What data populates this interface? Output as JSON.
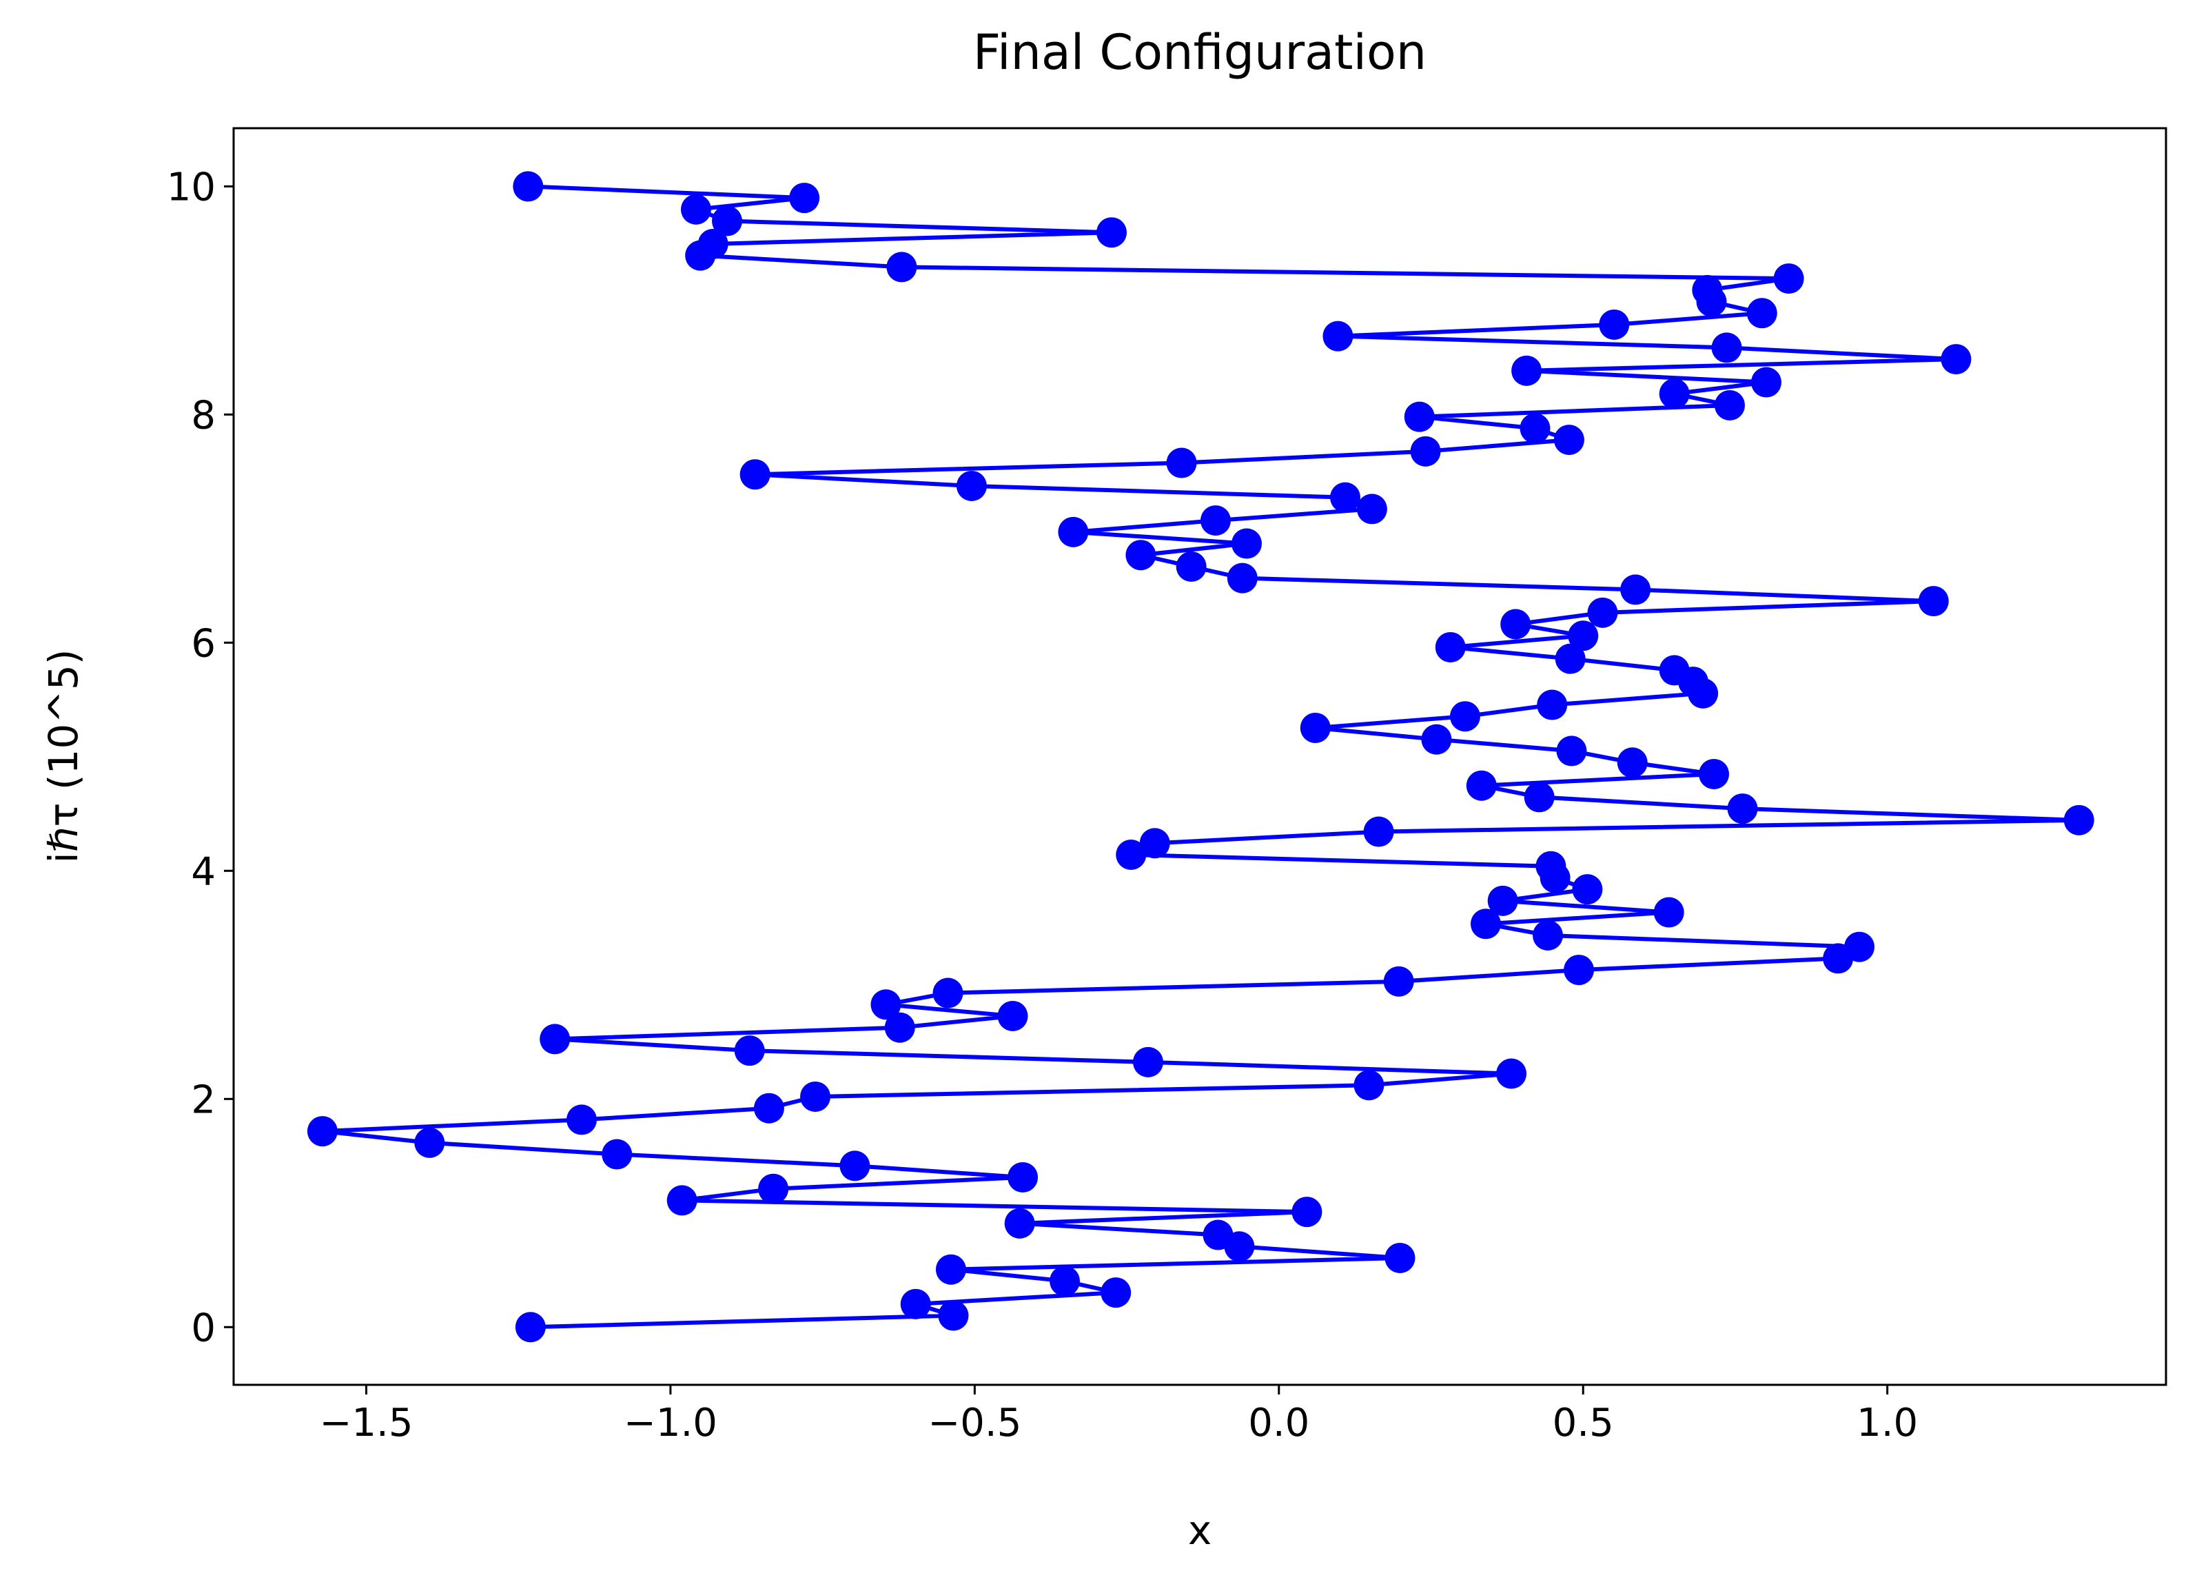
{
  "chart_data": {
    "type": "line",
    "title": "Final Configuration",
    "x_label": "x",
    "y_label": "iℏτ (10^5)",
    "x": [
      -1.23,
      -0.535,
      -0.597,
      -0.268,
      -0.352,
      -0.539,
      0.199,
      -0.065,
      -0.1,
      -0.426,
      0.046,
      -0.981,
      -0.831,
      -0.421,
      -0.697,
      -1.088,
      -1.396,
      -1.572,
      -1.146,
      -0.838,
      -0.762,
      0.148,
      0.382,
      -0.215,
      -0.87,
      -1.19,
      -0.623,
      -0.4375,
      -0.646,
      -0.544,
      0.197,
      0.493,
      0.919,
      0.954,
      0.442,
      0.34,
      0.641,
      0.368,
      0.507,
      0.454,
      0.447,
      -0.243,
      -0.204,
      0.164,
      1.315,
      0.762,
      0.428,
      0.333,
      0.715,
      0.581,
      0.481,
      0.259,
      0.06,
      0.306,
      0.449,
      0.697,
      0.681,
      0.65,
      0.479,
      0.282,
      0.5,
      0.389,
      0.532,
      1.076,
      0.586,
      -0.06,
      -0.144,
      -0.227,
      -0.053,
      -0.338,
      -0.104,
      0.153,
      0.109,
      -0.505,
      -0.861,
      -0.16,
      0.241,
      0.477,
      0.421,
      0.231,
      0.741,
      0.65,
      0.801,
      0.407,
      1.113,
      0.736,
      0.097,
      0.551,
      0.794,
      0.711,
      0.704,
      0.838,
      -0.62,
      -0.951,
      -0.93,
      -0.275,
      -0.907,
      -0.958,
      -0.78,
      -1.234
    ],
    "series": [
      {
        "color": "#0000ff",
        "marker": "circle",
        "values": [
          0,
          0.101,
          0.202,
          0.303,
          0.404,
          0.505,
          0.606,
          0.707,
          0.808,
          0.909,
          1.01,
          1.111,
          1.212,
          1.313,
          1.414,
          1.515,
          1.616,
          1.717,
          1.818,
          1.919,
          2.02,
          2.121,
          2.222,
          2.323,
          2.424,
          2.525,
          2.626,
          2.727,
          2.828,
          2.929,
          3.03,
          3.131,
          3.232,
          3.333,
          3.434,
          3.535,
          3.636,
          3.737,
          3.838,
          3.939,
          4.04,
          4.141,
          4.242,
          4.343,
          4.444,
          4.545,
          4.646,
          4.747,
          4.848,
          4.949,
          5.051,
          5.152,
          5.253,
          5.354,
          5.455,
          5.556,
          5.657,
          5.758,
          5.859,
          5.96,
          6.061,
          6.162,
          6.263,
          6.364,
          6.465,
          6.566,
          6.667,
          6.768,
          6.869,
          6.97,
          7.071,
          7.172,
          7.273,
          7.374,
          7.475,
          7.576,
          7.677,
          7.778,
          7.879,
          7.98,
          8.081,
          8.182,
          8.283,
          8.384,
          8.485,
          8.586,
          8.687,
          8.788,
          8.889,
          8.99,
          9.091,
          9.192,
          9.293,
          9.394,
          9.495,
          9.596,
          9.697,
          9.798,
          9.899,
          10
        ]
      }
    ],
    "xlim": [
      -1.718,
      1.458
    ],
    "ylim": [
      -0.506,
      10.51
    ],
    "xticks": [
      {
        "value": -1.5,
        "label": "−1.5"
      },
      {
        "value": -1,
        "label": "−1.0"
      },
      {
        "value": -0.5,
        "label": "−0.5"
      },
      {
        "value": 0,
        "label": "0.0"
      },
      {
        "value": 0.5,
        "label": "0.5"
      },
      {
        "value": 1,
        "label": "1.0"
      }
    ],
    "yticks": [
      0,
      2,
      4,
      6,
      8,
      10
    ],
    "grid": false
  }
}
